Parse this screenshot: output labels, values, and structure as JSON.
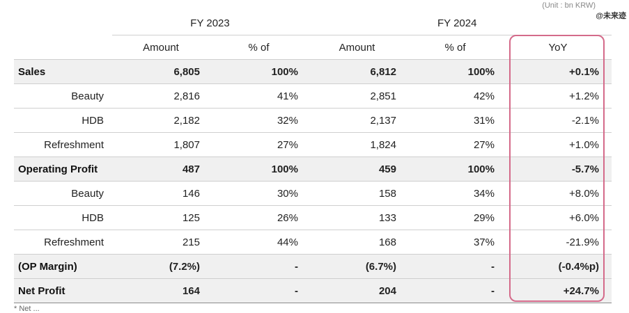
{
  "unit_note": "(Unit : bn KRW)",
  "watermark": "@未来迹",
  "periods": [
    "FY 2023",
    "FY 2024"
  ],
  "column_headers": {
    "amount": "Amount",
    "pct": "% of",
    "yoy": "YoY"
  },
  "rows": [
    {
      "label": "Sales",
      "a23": "6,805",
      "p23": "100%",
      "a24": "6,812",
      "p24": "100%",
      "yoy": "+0.1%"
    },
    {
      "label": "Beauty",
      "a23": "2,816",
      "p23": "41%",
      "a24": "2,851",
      "p24": "42%",
      "yoy": "+1.2%"
    },
    {
      "label": "HDB",
      "a23": "2,182",
      "p23": "32%",
      "a24": "2,137",
      "p24": "31%",
      "yoy": "-2.1%"
    },
    {
      "label": "Refreshment",
      "a23": "1,807",
      "p23": "27%",
      "a24": "1,824",
      "p24": "27%",
      "yoy": "+1.0%"
    },
    {
      "label": "Operating Profit",
      "a23": "487",
      "p23": "100%",
      "a24": "459",
      "p24": "100%",
      "yoy": "-5.7%"
    },
    {
      "label": "Beauty",
      "a23": "146",
      "p23": "30%",
      "a24": "158",
      "p24": "34%",
      "yoy": "+8.0%"
    },
    {
      "label": "HDB",
      "a23": "125",
      "p23": "26%",
      "a24": "133",
      "p24": "29%",
      "yoy": "+6.0%"
    },
    {
      "label": "Refreshment",
      "a23": "215",
      "p23": "44%",
      "a24": "168",
      "p24": "37%",
      "yoy": "-21.9%"
    },
    {
      "label": "(OP Margin)",
      "a23": "(7.2%)",
      "p23": "-",
      "a24": "(6.7%)",
      "p24": "-",
      "yoy": "(-0.4%p)"
    },
    {
      "label": "Net Profit",
      "a23": "164",
      "p23": "-",
      "a24": "204",
      "p24": "-",
      "yoy": "+24.7%"
    }
  ],
  "footnote": "* Net ..."
}
